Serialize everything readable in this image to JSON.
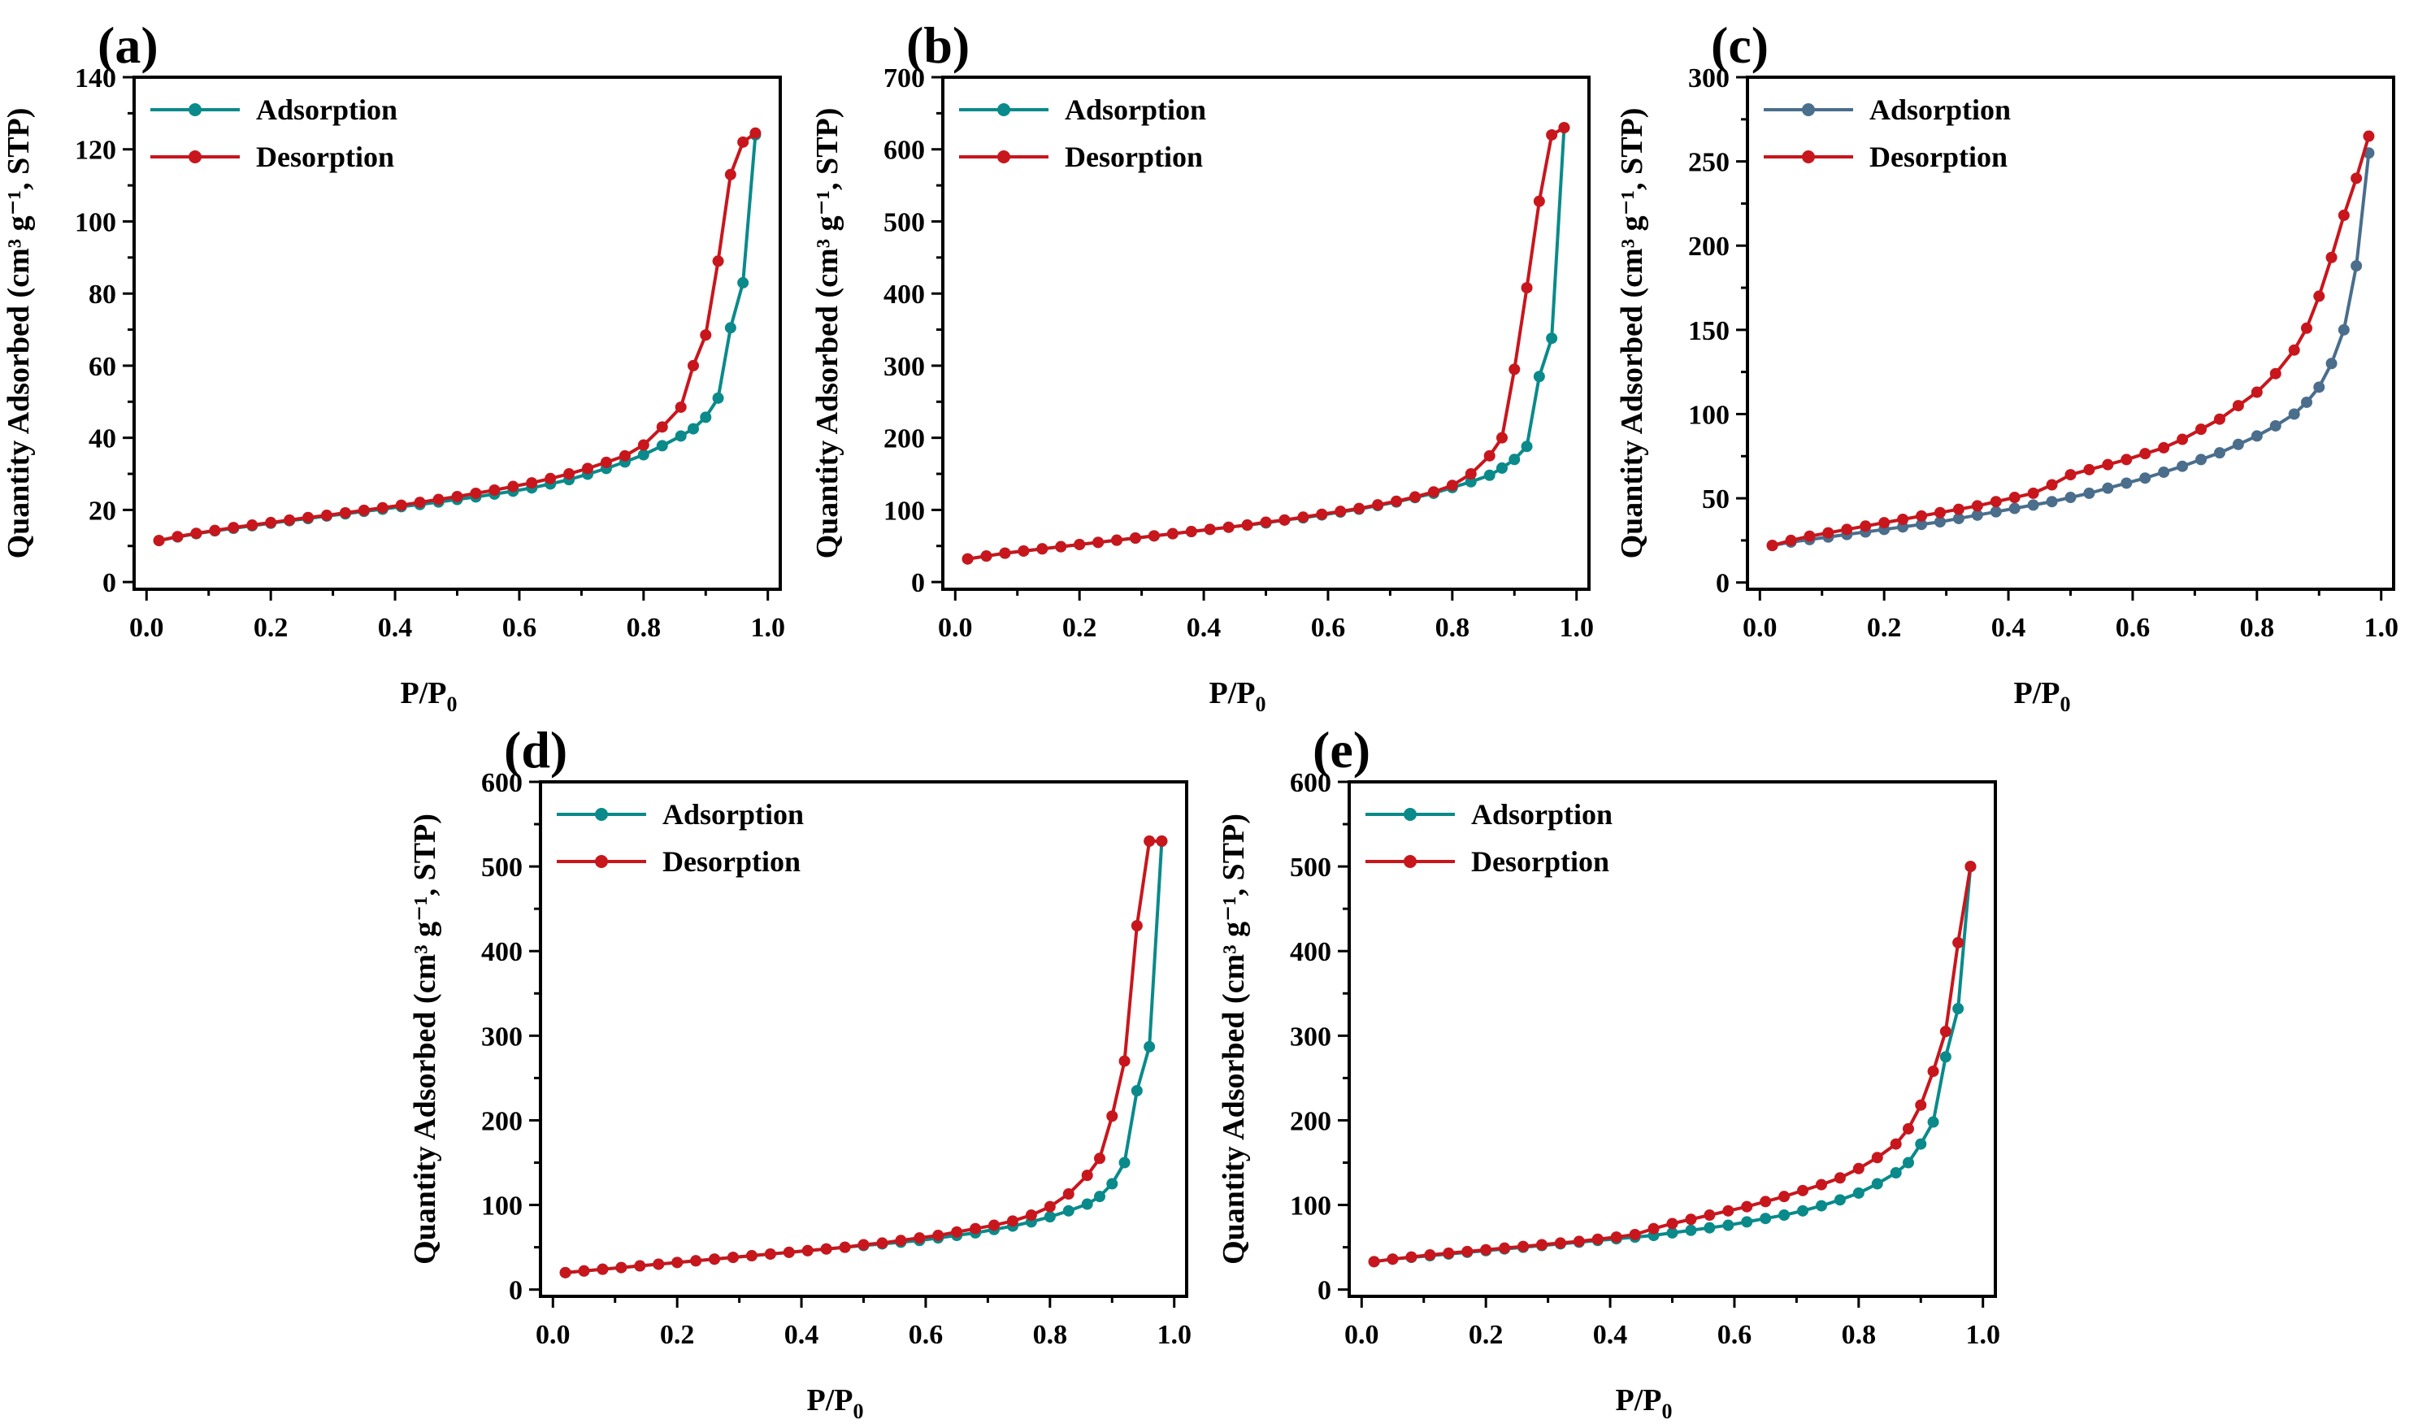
{
  "figure": {
    "background": "#ffffff",
    "colors": {
      "adsorption_teal": "#0a8a8a",
      "adsorption_slate": "#4a6e8c",
      "desorption": "#c8161d",
      "axis": "#000000"
    }
  },
  "chart_data": [
    {
      "panel": "(a)",
      "type": "line",
      "xlabel": "P/P",
      "xlabel_sub": "0",
      "ylabel": "Quantity Adsorbed (cm³ g⁻¹, STP)",
      "xlim": [
        -0.02,
        1.02
      ],
      "ylim": [
        -2,
        140
      ],
      "xticks": [
        0.0,
        0.2,
        0.4,
        0.6,
        0.8,
        1.0
      ],
      "xtick_labels": [
        "0.0",
        "0.2",
        "0.4",
        "0.6",
        "0.8",
        "1.0"
      ],
      "yticks": [
        0,
        20,
        40,
        60,
        80,
        100,
        120,
        140
      ],
      "ytick_labels": [
        "0",
        "20",
        "40",
        "60",
        "80",
        "100",
        "120",
        "140"
      ],
      "legend_position": "top-left",
      "series": [
        {
          "name": "Adsorption",
          "color": "#0a8a8a",
          "x": [
            0.02,
            0.05,
            0.08,
            0.11,
            0.14,
            0.17,
            0.2,
            0.23,
            0.26,
            0.29,
            0.32,
            0.35,
            0.38,
            0.41,
            0.44,
            0.47,
            0.5,
            0.53,
            0.56,
            0.59,
            0.62,
            0.65,
            0.68,
            0.71,
            0.74,
            0.77,
            0.8,
            0.83,
            0.86,
            0.88,
            0.9,
            0.92,
            0.94,
            0.96,
            0.98
          ],
          "y": [
            11.5,
            12.5,
            13.4,
            14.2,
            14.9,
            15.6,
            16.3,
            17.0,
            17.6,
            18.3,
            18.9,
            19.6,
            20.2,
            20.9,
            21.5,
            22.2,
            22.9,
            23.6,
            24.4,
            25.2,
            26.1,
            27.2,
            28.4,
            29.9,
            31.5,
            33.3,
            35.3,
            37.8,
            40.5,
            42.5,
            45.7,
            51.0,
            70.5,
            83.0,
            124.0
          ]
        },
        {
          "name": "Desorption",
          "color": "#c8161d",
          "x": [
            0.02,
            0.05,
            0.08,
            0.11,
            0.14,
            0.17,
            0.2,
            0.23,
            0.26,
            0.29,
            0.32,
            0.35,
            0.38,
            0.41,
            0.44,
            0.47,
            0.5,
            0.53,
            0.56,
            0.59,
            0.62,
            0.65,
            0.68,
            0.71,
            0.74,
            0.77,
            0.8,
            0.83,
            0.86,
            0.88,
            0.9,
            0.92,
            0.94,
            0.96,
            0.98
          ],
          "y": [
            11.5,
            12.6,
            13.5,
            14.3,
            15.1,
            15.8,
            16.5,
            17.2,
            17.9,
            18.5,
            19.2,
            19.9,
            20.6,
            21.3,
            22.1,
            22.9,
            23.7,
            24.6,
            25.5,
            26.5,
            27.5,
            28.7,
            30.0,
            31.5,
            33.2,
            35.0,
            38.0,
            43.0,
            48.5,
            60.0,
            68.5,
            89.0,
            113.0,
            122.0,
            124.5
          ]
        }
      ]
    },
    {
      "panel": "(b)",
      "type": "line",
      "xlabel": "P/P",
      "xlabel_sub": "0",
      "ylabel": "Quantity Adsorbed (cm³ g⁻¹, STP)",
      "xlim": [
        -0.02,
        1.02
      ],
      "ylim": [
        -10,
        700
      ],
      "xticks": [
        0.0,
        0.2,
        0.4,
        0.6,
        0.8,
        1.0
      ],
      "xtick_labels": [
        "0.0",
        "0.2",
        "0.4",
        "0.6",
        "0.8",
        "1.0"
      ],
      "yticks": [
        0,
        100,
        200,
        300,
        400,
        500,
        600,
        700
      ],
      "ytick_labels": [
        "0",
        "100",
        "200",
        "300",
        "400",
        "500",
        "600",
        "700"
      ],
      "legend_position": "top-left",
      "series": [
        {
          "name": "Adsorption",
          "color": "#0a8a8a",
          "x": [
            0.02,
            0.05,
            0.08,
            0.11,
            0.14,
            0.17,
            0.2,
            0.23,
            0.26,
            0.29,
            0.32,
            0.35,
            0.38,
            0.41,
            0.44,
            0.47,
            0.5,
            0.53,
            0.56,
            0.59,
            0.62,
            0.65,
            0.68,
            0.71,
            0.74,
            0.77,
            0.8,
            0.83,
            0.86,
            0.88,
            0.9,
            0.92,
            0.94,
            0.96,
            0.98
          ],
          "y": [
            32,
            36,
            40,
            43,
            46,
            49,
            52,
            55,
            58,
            61,
            64,
            67,
            70,
            73,
            76,
            79,
            82,
            86,
            89,
            93,
            97,
            101,
            106,
            111,
            117,
            123,
            131,
            139,
            148,
            158,
            170,
            188,
            285,
            338,
            630
          ]
        },
        {
          "name": "Desorption",
          "color": "#c8161d",
          "x": [
            0.02,
            0.05,
            0.08,
            0.11,
            0.14,
            0.17,
            0.2,
            0.23,
            0.26,
            0.29,
            0.32,
            0.35,
            0.38,
            0.41,
            0.44,
            0.47,
            0.5,
            0.53,
            0.56,
            0.59,
            0.62,
            0.65,
            0.68,
            0.71,
            0.74,
            0.77,
            0.8,
            0.83,
            0.86,
            0.88,
            0.9,
            0.92,
            0.94,
            0.96,
            0.98
          ],
          "y": [
            32,
            36,
            40,
            43,
            46,
            49,
            52,
            55,
            58,
            61,
            64,
            67,
            70,
            73,
            76,
            79,
            83,
            86,
            90,
            94,
            98,
            102,
            107,
            112,
            118,
            125,
            134,
            150,
            175,
            200,
            295,
            408,
            528,
            620,
            630
          ]
        }
      ]
    },
    {
      "panel": "(c)",
      "type": "line",
      "xlabel": "P/P",
      "xlabel_sub": "0",
      "ylabel": "Quantity Adsorbed (cm³ g⁻¹, STP)",
      "xlim": [
        -0.02,
        1.02
      ],
      "ylim": [
        -4,
        300
      ],
      "xticks": [
        0.0,
        0.2,
        0.4,
        0.6,
        0.8,
        1.0
      ],
      "xtick_labels": [
        "0.0",
        "0.2",
        "0.4",
        "0.6",
        "0.8",
        "1.0"
      ],
      "yticks": [
        0,
        50,
        100,
        150,
        200,
        250,
        300
      ],
      "ytick_labels": [
        "0",
        "50",
        "100",
        "150",
        "200",
        "250",
        "300"
      ],
      "legend_position": "top-left",
      "series": [
        {
          "name": "Adsorption",
          "color": "#4a6e8c",
          "x": [
            0.02,
            0.05,
            0.08,
            0.11,
            0.14,
            0.17,
            0.2,
            0.23,
            0.26,
            0.29,
            0.32,
            0.35,
            0.38,
            0.41,
            0.44,
            0.47,
            0.5,
            0.53,
            0.56,
            0.59,
            0.62,
            0.65,
            0.68,
            0.71,
            0.74,
            0.77,
            0.8,
            0.83,
            0.86,
            0.88,
            0.9,
            0.92,
            0.94,
            0.96,
            0.98
          ],
          "y": [
            22,
            24,
            25.5,
            27,
            28.5,
            30,
            31.5,
            33,
            34.5,
            36,
            38,
            40,
            42,
            44,
            46,
            48,
            50.5,
            53,
            56,
            59,
            62,
            65.5,
            69,
            73,
            77,
            82,
            87,
            93,
            100,
            107,
            116,
            130,
            150,
            188,
            255
          ]
        },
        {
          "name": "Desorption",
          "color": "#c8161d",
          "x": [
            0.02,
            0.05,
            0.08,
            0.11,
            0.14,
            0.17,
            0.2,
            0.23,
            0.26,
            0.29,
            0.32,
            0.35,
            0.38,
            0.41,
            0.44,
            0.47,
            0.5,
            0.53,
            0.56,
            0.59,
            0.62,
            0.65,
            0.68,
            0.71,
            0.74,
            0.77,
            0.8,
            0.83,
            0.86,
            0.88,
            0.9,
            0.92,
            0.94,
            0.96,
            0.98
          ],
          "y": [
            22,
            25,
            27.5,
            29.5,
            31.5,
            33.5,
            35.5,
            37.5,
            39.5,
            41.5,
            43.5,
            45.5,
            48,
            50.5,
            53,
            58,
            64,
            67,
            70,
            73,
            76.5,
            80,
            85,
            91,
            97,
            105,
            113,
            124,
            138,
            151,
            170,
            193,
            218,
            240,
            265
          ]
        }
      ]
    },
    {
      "panel": "(d)",
      "type": "line",
      "xlabel": "P/P",
      "xlabel_sub": "0",
      "ylabel": "Quantity Adsorbed (cm³ g⁻¹, STP)",
      "xlim": [
        -0.02,
        1.02
      ],
      "ylim": [
        -8,
        600
      ],
      "xticks": [
        0.0,
        0.2,
        0.4,
        0.6,
        0.8,
        1.0
      ],
      "xtick_labels": [
        "0.0",
        "0.2",
        "0.4",
        "0.6",
        "0.8",
        "1.0"
      ],
      "yticks": [
        0,
        100,
        200,
        300,
        400,
        500,
        600
      ],
      "ytick_labels": [
        "0",
        "100",
        "200",
        "300",
        "400",
        "500",
        "600"
      ],
      "legend_position": "top-left",
      "series": [
        {
          "name": "Adsorption",
          "color": "#0a8a8a",
          "x": [
            0.02,
            0.05,
            0.08,
            0.11,
            0.14,
            0.17,
            0.2,
            0.23,
            0.26,
            0.29,
            0.32,
            0.35,
            0.38,
            0.41,
            0.44,
            0.47,
            0.5,
            0.53,
            0.56,
            0.59,
            0.62,
            0.65,
            0.68,
            0.71,
            0.74,
            0.77,
            0.8,
            0.83,
            0.86,
            0.88,
            0.9,
            0.92,
            0.94,
            0.96,
            0.98
          ],
          "y": [
            20,
            22,
            24,
            26,
            28,
            30,
            32,
            34,
            36,
            38,
            40,
            42,
            44,
            46,
            48,
            50,
            52,
            54,
            56,
            58,
            61,
            64,
            67,
            71,
            75,
            80,
            86,
            93,
            101,
            110,
            125,
            150,
            235,
            287,
            530
          ]
        },
        {
          "name": "Desorption",
          "color": "#c8161d",
          "x": [
            0.02,
            0.05,
            0.08,
            0.11,
            0.14,
            0.17,
            0.2,
            0.23,
            0.26,
            0.29,
            0.32,
            0.35,
            0.38,
            0.41,
            0.44,
            0.47,
            0.5,
            0.53,
            0.56,
            0.59,
            0.62,
            0.65,
            0.68,
            0.71,
            0.74,
            0.77,
            0.8,
            0.83,
            0.86,
            0.88,
            0.9,
            0.92,
            0.94,
            0.96,
            0.98
          ],
          "y": [
            20,
            22,
            24,
            26,
            28,
            30,
            32,
            34,
            36,
            38,
            40,
            42,
            44,
            46,
            48,
            50,
            53,
            55,
            58,
            61,
            64,
            68,
            72,
            76,
            81,
            88,
            98,
            113,
            135,
            155,
            205,
            270,
            430,
            530,
            530
          ]
        }
      ]
    },
    {
      "panel": "(e)",
      "type": "line",
      "xlabel": "P/P",
      "xlabel_sub": "0",
      "ylabel": "Quantity Adsorbed (cm³ g⁻¹, STP)",
      "xlim": [
        -0.02,
        1.02
      ],
      "ylim": [
        -8,
        600
      ],
      "xticks": [
        0.0,
        0.2,
        0.4,
        0.6,
        0.8,
        1.0
      ],
      "xtick_labels": [
        "0.0",
        "0.2",
        "0.4",
        "0.6",
        "0.8",
        "1.0"
      ],
      "yticks": [
        0,
        100,
        200,
        300,
        400,
        500,
        600
      ],
      "ytick_labels": [
        "0",
        "100",
        "200",
        "300",
        "400",
        "500",
        "600"
      ],
      "legend_position": "top-left",
      "series": [
        {
          "name": "Adsorption",
          "color": "#0a8a8a",
          "x": [
            0.02,
            0.05,
            0.08,
            0.11,
            0.14,
            0.17,
            0.2,
            0.23,
            0.26,
            0.29,
            0.32,
            0.35,
            0.38,
            0.41,
            0.44,
            0.47,
            0.5,
            0.53,
            0.56,
            0.59,
            0.62,
            0.65,
            0.68,
            0.71,
            0.74,
            0.77,
            0.8,
            0.83,
            0.86,
            0.88,
            0.9,
            0.92,
            0.94,
            0.96,
            0.98
          ],
          "y": [
            33,
            36,
            38,
            40,
            42,
            44,
            46,
            48,
            50,
            52,
            54,
            56,
            58,
            60,
            62,
            64,
            67,
            70,
            73,
            76,
            80,
            84,
            88,
            93,
            99,
            106,
            114,
            125,
            138,
            150,
            172,
            198,
            275,
            332,
            500
          ]
        },
        {
          "name": "Desorption",
          "color": "#c8161d",
          "x": [
            0.02,
            0.05,
            0.08,
            0.11,
            0.14,
            0.17,
            0.2,
            0.23,
            0.26,
            0.29,
            0.32,
            0.35,
            0.38,
            0.41,
            0.44,
            0.47,
            0.5,
            0.53,
            0.56,
            0.59,
            0.62,
            0.65,
            0.68,
            0.71,
            0.74,
            0.77,
            0.8,
            0.83,
            0.86,
            0.88,
            0.9,
            0.92,
            0.94,
            0.96,
            0.98
          ],
          "y": [
            33,
            36,
            38.5,
            41,
            43,
            45,
            47,
            49,
            51,
            53,
            55,
            57,
            59.5,
            62,
            65,
            72,
            78,
            83,
            88,
            93,
            98,
            104,
            110,
            117,
            124,
            132,
            143,
            156,
            172,
            190,
            218,
            258,
            305,
            410,
            500
          ]
        }
      ]
    }
  ]
}
